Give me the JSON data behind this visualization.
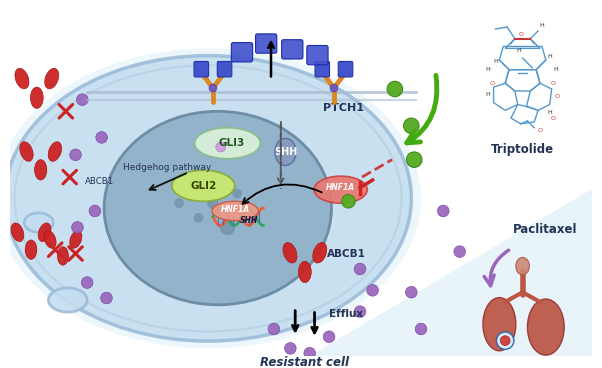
{
  "background_color": "#ffffff",
  "cell_color": "#c5ddf0",
  "cell_edge_color": "#9bbbd8",
  "cell_inner_edge_color": "#b0ccde",
  "nucleus_color": "#8fafc8",
  "nucleus_edge_color": "#6888a0",
  "gli3_color": "#d8f0d8",
  "gli3_edge": "#88bb88",
  "gli2_color": "#c8e870",
  "gli2_edge": "#88aa33",
  "hnf1a_color": "#e87870",
  "hnf1a_edge": "#cc4444",
  "ptch1_label": "PTCH1",
  "shh_label": "SHH",
  "gli3_label": "GLI3",
  "gli2_label": "GLI2",
  "hnf1a_label": "HNF1A",
  "abcb1_label": "ABCB1",
  "efflux_label": "Efflux",
  "resistant_cell_label": "Resistant cell",
  "hedgehog_label": "Hedgehog pathway",
  "triptolide_label": "Triptolide",
  "paclitaxel_label": "Paclitaxel",
  "green_arrow_color": "#44aa11",
  "purple_arrow_color": "#9966bb",
  "red_color": "#cc2222",
  "purple_dot_color": "#9966bb",
  "green_dot_color": "#55aa22",
  "blue_color": "#4455cc",
  "orange_color": "#dd8822",
  "struct_color": "#5599cc",
  "struct_red": "#cc3333"
}
